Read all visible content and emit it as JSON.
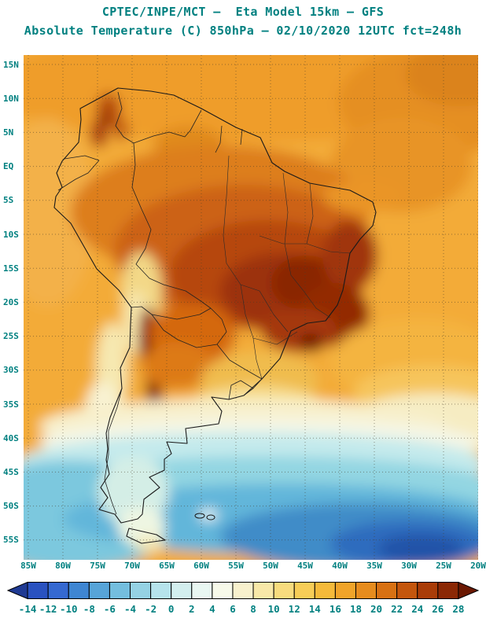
{
  "theme": {
    "title_text": "#007d7d",
    "axis_text": "#008080",
    "background": "#ffffff",
    "outline": "#1a1a1a"
  },
  "header": {
    "title_line1": "CPTEC/INPE/MCT —  Eta Model 15km — GFS",
    "title_line2": "Absolute Temperature (C) 850hPa — 02/10/2020 12UTC fct=248h"
  },
  "map": {
    "region": "South America",
    "lat_ticks": [
      "15N",
      "10N",
      "5N",
      "EQ",
      "5S",
      "10S",
      "15S",
      "20S",
      "25S",
      "30S",
      "35S",
      "40S",
      "45S",
      "50S",
      "55S"
    ],
    "lon_ticks": [
      "85W",
      "80W",
      "75W",
      "70W",
      "65W",
      "60W",
      "55W",
      "50W",
      "45W",
      "40W",
      "35W",
      "30W",
      "25W",
      "20W"
    ]
  },
  "colorbar": {
    "unit": "C",
    "tick_values": [
      -14,
      -12,
      -10,
      -8,
      -6,
      -4,
      -2,
      0,
      2,
      4,
      6,
      8,
      10,
      12,
      14,
      16,
      18,
      20,
      22,
      24,
      26,
      28
    ],
    "colors": [
      "#1f3a93",
      "#2a52c0",
      "#3569d1",
      "#3f86d2",
      "#57a4d8",
      "#74bede",
      "#95d2e4",
      "#b6e3ec",
      "#d3efef",
      "#e9f7f2",
      "#f7f9ea",
      "#f8f1cd",
      "#f8e8a8",
      "#f8dc7e",
      "#f7cd57",
      "#f5ba3a",
      "#f0a42a",
      "#e68c1e",
      "#d87113",
      "#c4560d",
      "#a93c08",
      "#8b2805",
      "#6b1802"
    ]
  },
  "chart_data": {
    "type": "heatmap",
    "title": "Absolute Temperature (C) 850hPa",
    "center": "CPTEC/INPE/MCT",
    "model": "Eta Model 15km — GFS",
    "valid": "02/10/2020 12UTC fct=248h",
    "scale_range_c": [
      -14,
      28
    ],
    "lon_range": [
      "85W",
      "20W"
    ],
    "lat_range": [
      "15N",
      "55S"
    ],
    "regional_values_c": {
      "central_brazil_hot_core": 28,
      "amazon_interior": 24,
      "northeast_brazil_interior": 26,
      "northern_south_america": 18,
      "tropical_atlantic": 16,
      "altiplano_andes": 10,
      "nw_argentina_andes_streak": 26,
      "paraguay_chaco": 22,
      "uruguay_la_plata": 8,
      "central_argentina_band": 4,
      "patagonia": 0,
      "southeast_pacific_45s": -4,
      "south_atlantic_50s": -8,
      "south_atlantic_cold_core": -12
    }
  }
}
